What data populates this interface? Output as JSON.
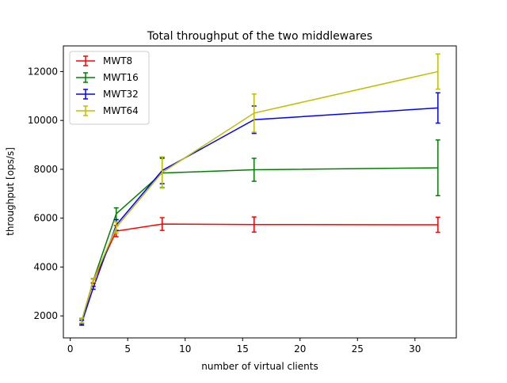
{
  "chart_data": {
    "type": "line",
    "title": "Total throughput of the two middlewares",
    "xlabel": "number of virtual clients",
    "ylabel": "throughput [ops/s]",
    "xlim": [
      -0.6,
      33.6
    ],
    "ylim": [
      1100,
      13050
    ],
    "xticks": [
      0,
      5,
      10,
      15,
      20,
      25,
      30
    ],
    "yticks": [
      2000,
      4000,
      6000,
      8000,
      10000,
      12000
    ],
    "grid": false,
    "legend_position": "top-left",
    "x": [
      1,
      2,
      4,
      8,
      16,
      32
    ],
    "series": [
      {
        "name": "MWT8",
        "color": "#ff0000",
        "values": [
          1780,
          3420,
          5470,
          5760,
          5740,
          5730
        ],
        "errors": [
          110,
          90,
          230,
          260,
          310,
          310
        ]
      },
      {
        "name": "MWT16",
        "color": "#008000",
        "values": [
          1800,
          3450,
          6180,
          7850,
          7980,
          8060
        ],
        "errors": [
          100,
          80,
          240,
          600,
          470,
          1140
        ]
      },
      {
        "name": "MWT32",
        "color": "#0000ff",
        "values": [
          1720,
          3150,
          5720,
          7950,
          10030,
          10510
        ],
        "errors": [
          100,
          60,
          220,
          540,
          560,
          620
        ]
      },
      {
        "name": "MWT64",
        "color": "#bfbf00",
        "values": [
          1810,
          3450,
          5620,
          7870,
          10300,
          12000
        ],
        "errors": [
          100,
          70,
          230,
          640,
          780,
          720
        ]
      }
    ]
  }
}
